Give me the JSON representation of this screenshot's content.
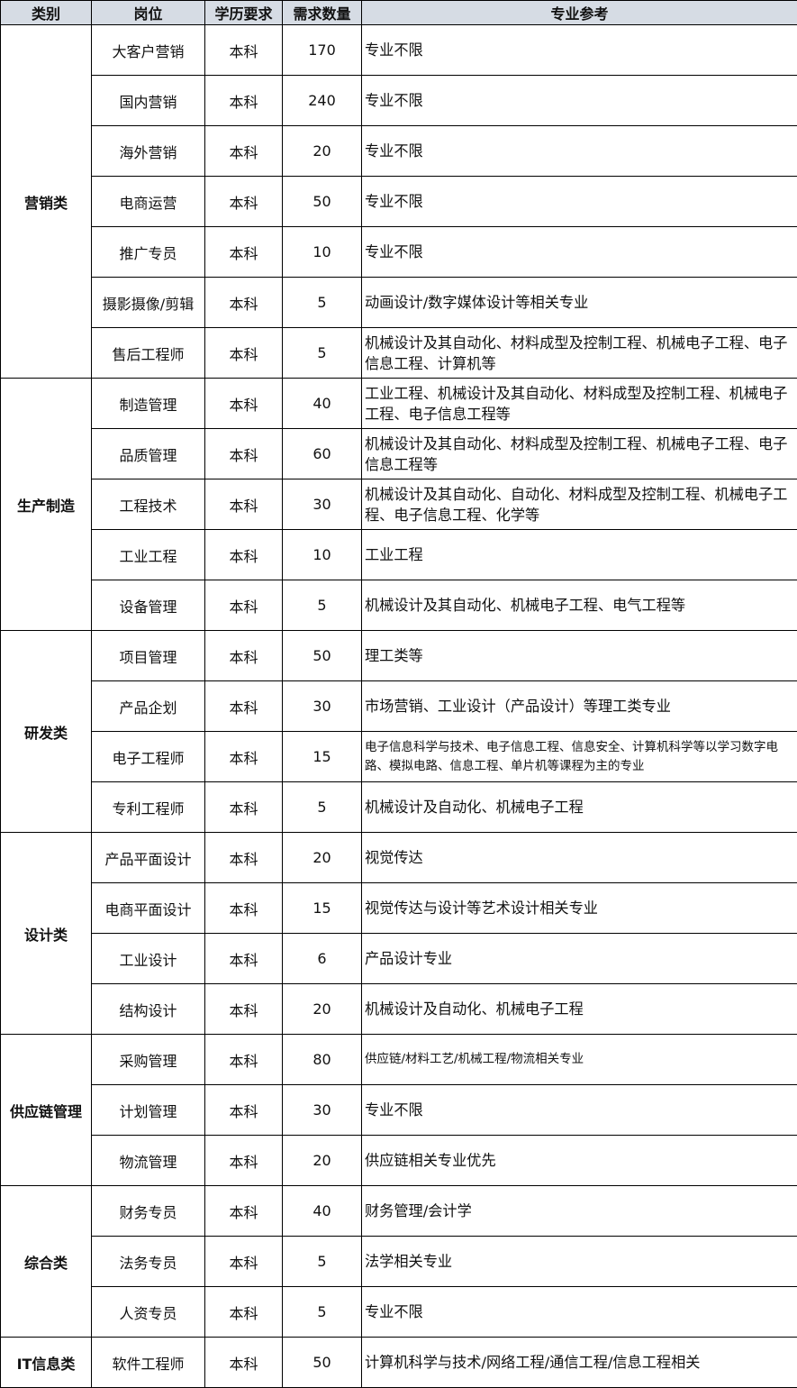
{
  "headers": [
    "类别",
    "岗位",
    "学历要求",
    "需求数量",
    "专业参考"
  ],
  "groups": [
    {
      "category": "营销类",
      "rows": [
        {
          "position": "大客户营销",
          "education": "本科",
          "count": "170",
          "major": "专业不限"
        },
        {
          "position": "国内营销",
          "education": "本科",
          "count": "240",
          "major": "专业不限"
        },
        {
          "position": "海外营销",
          "education": "本科",
          "count": "20",
          "major": "专业不限"
        },
        {
          "position": "电商运营",
          "education": "本科",
          "count": "50",
          "major": "专业不限"
        },
        {
          "position": "推广专员",
          "education": "本科",
          "count": "10",
          "major": "专业不限"
        },
        {
          "position": "摄影摄像/剪辑",
          "education": "本科",
          "count": "5",
          "major": "动画设计/数字媒体设计等相关专业"
        },
        {
          "position": "售后工程师",
          "education": "本科",
          "count": "5",
          "major": "机械设计及其自动化、材料成型及控制工程、机械电子工程、电子信息工程、计算机等"
        }
      ]
    },
    {
      "category": "生产制造",
      "rows": [
        {
          "position": "制造管理",
          "education": "本科",
          "count": "40",
          "major": "工业工程、机械设计及其自动化、材料成型及控制工程、机械电子工程、电子信息工程等"
        },
        {
          "position": "品质管理",
          "education": "本科",
          "count": "60",
          "major": "机械设计及其自动化、材料成型及控制工程、机械电子工程、电子信息工程等"
        },
        {
          "position": "工程技术",
          "education": "本科",
          "count": "30",
          "major": "机械设计及其自动化、自动化、材料成型及控制工程、机械电子工程、电子信息工程、化学等"
        },
        {
          "position": "工业工程",
          "education": "本科",
          "count": "10",
          "major": "工业工程"
        },
        {
          "position": "设备管理",
          "education": "本科",
          "count": "5",
          "major": "机械设计及其自动化、机械电子工程、电气工程等"
        }
      ]
    },
    {
      "category": "研发类",
      "rows": [
        {
          "position": "项目管理",
          "education": "本科",
          "count": "50",
          "major": "理工类等"
        },
        {
          "position": "产品企划",
          "education": "本科",
          "count": "30",
          "major": "市场营销、工业设计（产品设计）等理工类专业"
        },
        {
          "position": "电子工程师",
          "education": "本科",
          "count": "15",
          "major": "电子信息科学与技术、电子信息工程、信息安全、计算机科学等以学习数字电路、模拟电路、信息工程、单片机等课程为主的专业",
          "small": true
        },
        {
          "position": "专利工程师",
          "education": "本科",
          "count": "5",
          "major": "机械设计及自动化、机械电子工程"
        }
      ]
    },
    {
      "category": "设计类",
      "rows": [
        {
          "position": "产品平面设计",
          "education": "本科",
          "count": "20",
          "major": "视觉传达"
        },
        {
          "position": "电商平面设计",
          "education": "本科",
          "count": "15",
          "major": "视觉传达与设计等艺术设计相关专业"
        },
        {
          "position": "工业设计",
          "education": "本科",
          "count": "6",
          "major": "产品设计专业"
        },
        {
          "position": "结构设计",
          "education": "本科",
          "count": "20",
          "major": "机械设计及自动化、机械电子工程"
        }
      ]
    },
    {
      "category": "供应链管理",
      "rows": [
        {
          "position": "采购管理",
          "education": "本科",
          "count": "80",
          "major": "供应链/材料工艺/机械工程/物流相关专业",
          "small": true
        },
        {
          "position": "计划管理",
          "education": "本科",
          "count": "30",
          "major": "专业不限"
        },
        {
          "position": "物流管理",
          "education": "本科",
          "count": "20",
          "major": "供应链相关专业优先"
        }
      ]
    },
    {
      "category": "综合类",
      "rows": [
        {
          "position": "财务专员",
          "education": "本科",
          "count": "40",
          "major": "财务管理/会计学"
        },
        {
          "position": "法务专员",
          "education": "本科",
          "count": "5",
          "major": "法学相关专业"
        },
        {
          "position": "人资专员",
          "education": "本科",
          "count": "5",
          "major": "专业不限"
        }
      ]
    },
    {
      "category": "IT信息类",
      "rows": [
        {
          "position": "软件工程师",
          "education": "本科",
          "count": "50",
          "major": "计算机科学与技术/网络工程/通信工程/信息工程相关"
        }
      ]
    }
  ],
  "colors": {
    "header_bg": "#d6dce4",
    "border": "#000000"
  }
}
